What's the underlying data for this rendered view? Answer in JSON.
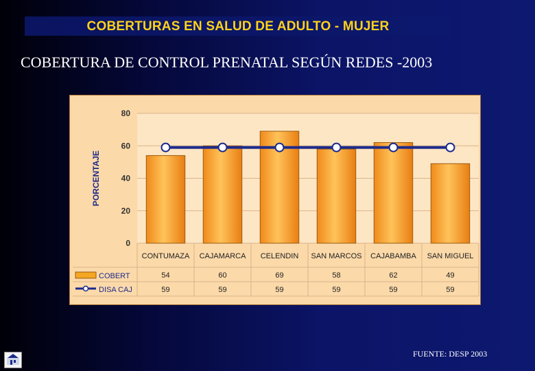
{
  "header": {
    "title": "COBERTURAS EN SALUD DE  ADULTO - MUJER"
  },
  "subtitle": "COBERTURA DE CONTROL PRENATAL SEGÚN  REDES  -2003",
  "footnote": "FUENTE: DESP 2003",
  "chart_data": {
    "type": "bar",
    "title": "COBERTURA DE CONTROL PRENATAL SEGÚN  REDES  -2003",
    "xlabel": "",
    "ylabel": "PORCENTAJE",
    "ylim": [
      0,
      80
    ],
    "yticks": [
      "0",
      "20",
      "40",
      "60",
      "80"
    ],
    "grid": true,
    "legend": "bottom (data table)",
    "categories": [
      "CONTUMAZA",
      "CAJAMARCA",
      "CELENDIN",
      "SAN MARCOS",
      "CAJABAMBA",
      "SAN MIGUEL"
    ],
    "series": [
      {
        "name": "COBERT",
        "kind": "bar",
        "color": "#f5a623",
        "values": [
          54,
          60,
          69,
          58,
          62,
          49
        ],
        "labels": [
          "54",
          "60",
          "69",
          "58",
          "62",
          "49"
        ]
      },
      {
        "name": "DISA CAJ",
        "kind": "line",
        "color": "#1c2a8c",
        "values": [
          59,
          59,
          59,
          59,
          59,
          59
        ],
        "labels": [
          "59",
          "59",
          "59",
          "59",
          "59",
          "59"
        ]
      }
    ]
  }
}
